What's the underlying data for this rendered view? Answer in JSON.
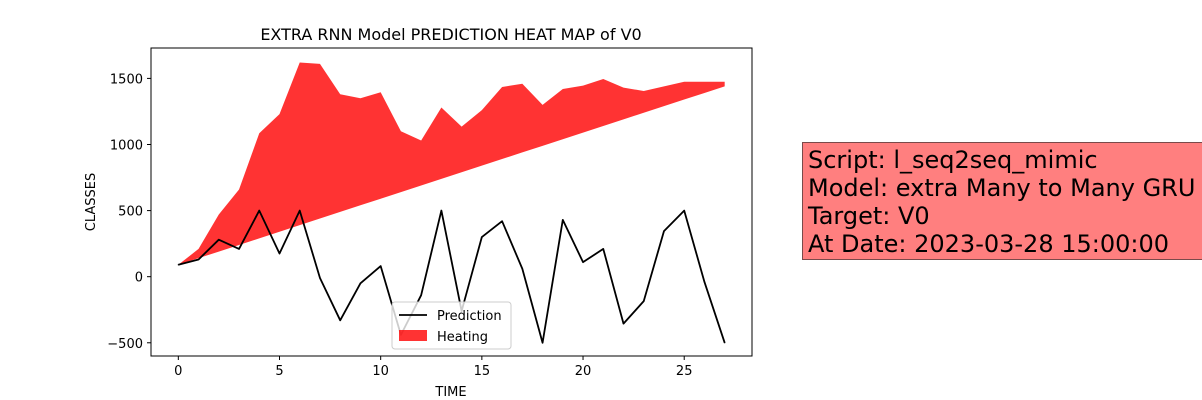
{
  "chart_data": {
    "type": "area",
    "title": "EXTRA RNN Model PREDICTION HEAT MAP of V0",
    "xlabel": "TIME",
    "ylabel": "CLASSES",
    "xlim": [
      -1.35,
      28.35
    ],
    "ylim": [
      -600,
      1730
    ],
    "x_ticks": [
      0,
      5,
      10,
      15,
      20,
      25
    ],
    "y_ticks": [
      -500,
      0,
      500,
      1000,
      1500
    ],
    "x": [
      0,
      1,
      2,
      3,
      4,
      5,
      6,
      7,
      8,
      9,
      10,
      11,
      12,
      13,
      14,
      15,
      16,
      17,
      18,
      19,
      20,
      21,
      22,
      23,
      24,
      25,
      26,
      27
    ],
    "series": [
      {
        "name": "Prediction",
        "kind": "line",
        "color": "#000000",
        "values": [
          90,
          130,
          280,
          210,
          500,
          175,
          500,
          -10,
          -330,
          -50,
          80,
          -440,
          -140,
          500,
          -260,
          300,
          420,
          60,
          -500,
          430,
          110,
          210,
          -355,
          -185,
          345,
          500,
          -40,
          -500
        ]
      },
      {
        "name": "Heating",
        "kind": "fill_between",
        "color": "#ff0000",
        "alpha": 0.8,
        "upper": [
          90,
          210,
          470,
          660,
          1085,
          1230,
          1620,
          1610,
          1380,
          1350,
          1395,
          1100,
          1030,
          1280,
          1135,
          1260,
          1435,
          1460,
          1300,
          1420,
          1445,
          1495,
          1430,
          1405,
          1440,
          1475,
          1475,
          1475
        ],
        "lower": [
          90,
          140,
          190,
          240,
          290,
          340,
          390,
          440,
          490,
          540,
          590,
          640,
          690,
          740,
          790,
          840,
          890,
          940,
          990,
          1040,
          1090,
          1140,
          1190,
          1240,
          1290,
          1340,
          1390,
          1440
        ]
      }
    ],
    "legend_position": "lower-center",
    "grid": false
  },
  "info_box": {
    "line1": "Script: l_seq2seq_mimic",
    "line2": "Model: extra Many to Many GRU",
    "line3": "Target: V0",
    "line4": "At Date: 2023-03-28 15:00:00",
    "background": "#ff7f7f"
  }
}
